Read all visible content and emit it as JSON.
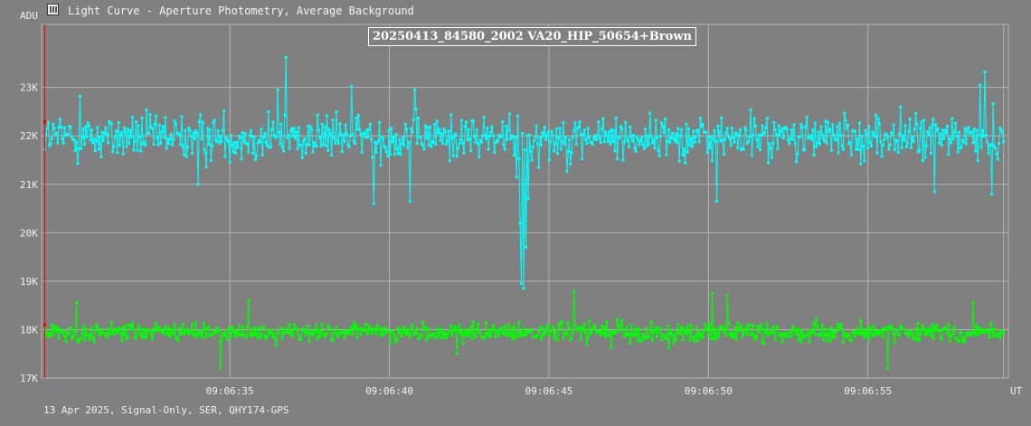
{
  "window": {
    "title": "Light Curve - Aperture Photometry, Average Background",
    "icon": "light-curve-app-icon"
  },
  "footer": {
    "text": "13 Apr 2025, Signal-Only, SER, QHY174-GPS"
  },
  "colors": {
    "background": "#808080",
    "grid": "#b4b4b4",
    "target": "#00ffff",
    "comparison": "#00ff00",
    "marker": "#ff0000"
  },
  "chart_data": {
    "type": "line",
    "title": "20250413_84580_2002 VA20_HIP_50654+Brown",
    "ylabel": "ADU",
    "xlabel": "UT",
    "ylim": [
      17000,
      24300
    ],
    "xlim": [
      29.1,
      59.4
    ],
    "yticks": [
      17000,
      18000,
      19000,
      20000,
      21000,
      22000,
      23000
    ],
    "ytick_labels": [
      "17K",
      "18K",
      "19K",
      "20K",
      "21K",
      "22K",
      "23K"
    ],
    "xticks": [
      35,
      40,
      45,
      50,
      55
    ],
    "xtick_labels": [
      "09:06:35",
      "09:06:40",
      "09:06:45",
      "09:06:50",
      "09:06:55"
    ],
    "x_start": 29.2,
    "x_end": 59.25,
    "frames": 820,
    "grid": true,
    "series": [
      {
        "key": "target",
        "mean": 21970,
        "noise": 390,
        "outliers": [
          {
            "x": 36.75,
            "y": 23620
          },
          {
            "x": 36.5,
            "y": 22950
          },
          {
            "x": 38.8,
            "y": 23020
          },
          {
            "x": 40.8,
            "y": 22950
          },
          {
            "x": 40.65,
            "y": 20650
          },
          {
            "x": 39.5,
            "y": 20600
          },
          {
            "x": 50.25,
            "y": 20650
          },
          {
            "x": 57.1,
            "y": 20850
          },
          {
            "x": 58.5,
            "y": 23050
          },
          {
            "x": 58.65,
            "y": 23320
          },
          {
            "x": 58.9,
            "y": 20800
          },
          {
            "x": 30.3,
            "y": 22820
          },
          {
            "x": 34.0,
            "y": 21000
          }
        ],
        "dip": [
          {
            "x": 43.9,
            "y": 21600
          },
          {
            "x": 44.0,
            "y": 21150
          },
          {
            "x": 44.08,
            "y": 20200
          },
          {
            "x": 44.15,
            "y": 18950
          },
          {
            "x": 44.2,
            "y": 18850
          },
          {
            "x": 44.27,
            "y": 19700
          },
          {
            "x": 44.35,
            "y": 20700
          },
          {
            "x": 44.45,
            "y": 21500
          },
          {
            "x": 44.55,
            "y": 21900
          }
        ]
      },
      {
        "key": "comparison",
        "mean": 17940,
        "noise": 165,
        "outliers": [
          {
            "x": 30.2,
            "y": 18560
          },
          {
            "x": 34.7,
            "y": 17220
          },
          {
            "x": 35.6,
            "y": 18600
          },
          {
            "x": 42.1,
            "y": 17500
          },
          {
            "x": 45.8,
            "y": 18780
          },
          {
            "x": 50.1,
            "y": 18750
          },
          {
            "x": 50.6,
            "y": 18700
          },
          {
            "x": 55.6,
            "y": 17200
          },
          {
            "x": 58.3,
            "y": 18550
          }
        ]
      }
    ],
    "current_frame_marker": {
      "x": 29.2
    }
  }
}
